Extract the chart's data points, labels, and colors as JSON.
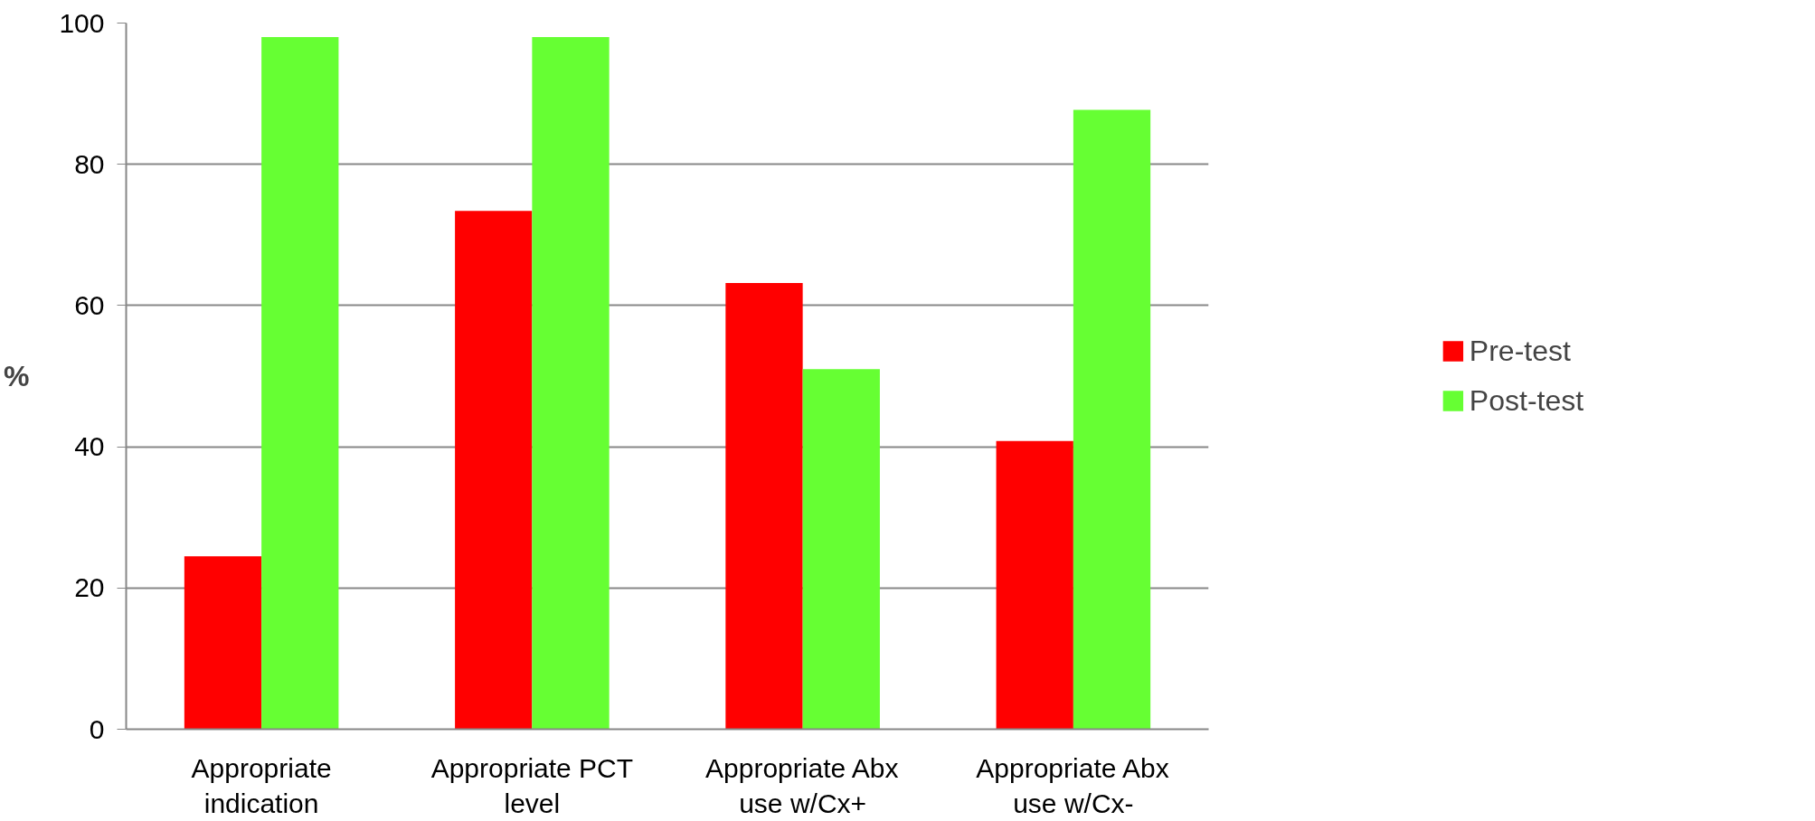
{
  "chart_data": {
    "type": "bar",
    "ylabel": "%",
    "categories": [
      "Appropriate indication",
      "Appropriate PCT level",
      "Appropriate Abx use w/Cx+",
      "Appropriate Abx use w/Cx-"
    ],
    "series": [
      {
        "name": "Pre-test",
        "color": "#ff0000",
        "values": [
          24.5,
          73.4,
          63.2,
          40.8
        ]
      },
      {
        "name": "Post-test",
        "color": "#66ff33",
        "values": [
          98.0,
          98.0,
          51.0,
          87.7
        ]
      }
    ],
    "ylim": [
      0,
      100
    ],
    "yticks": [
      0,
      20,
      40,
      60,
      80,
      100
    ],
    "grid": "y",
    "legend": "right"
  }
}
